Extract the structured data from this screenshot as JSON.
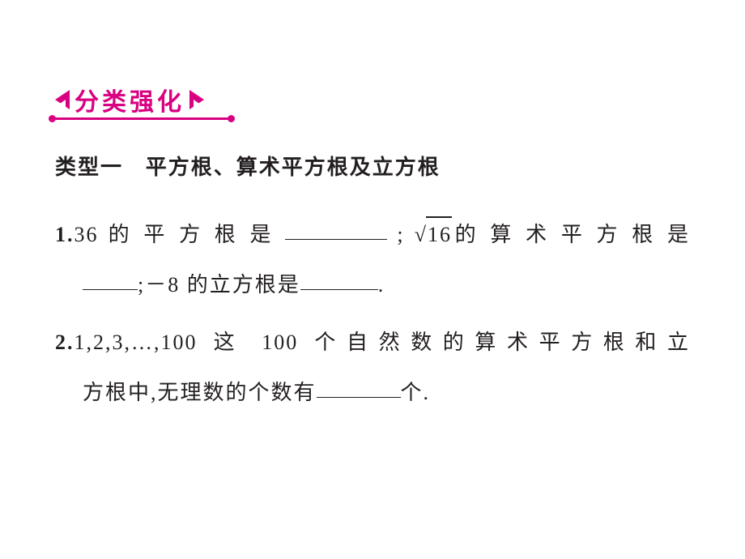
{
  "header": {
    "label": "分类强化",
    "color": "#d90081"
  },
  "typeHeading": {
    "prefix": "类型一",
    "title": "平方根、算术平方根及立方根"
  },
  "q1": {
    "num": "1.",
    "part1": "36 的 平 方 根 是",
    "blank1_width": 126,
    "part2": ";",
    "sqrt_val": "16",
    "part3": "的 算 术 平 方 根 是",
    "blank2_width": 68,
    "part4": ";－8 的立方根是",
    "blank3_width": 96,
    "part5": "."
  },
  "q2": {
    "num": "2.",
    "line1": "1,2,3,…,100 这 100 个自然数的算术平方根和立",
    "line2a": "方根中,无理数的个数有",
    "blank_width": 104,
    "line2b": "个."
  },
  "style": {
    "text_color": "#231f20",
    "bg_color": "#ffffff",
    "body_fontsize": 26,
    "heading_fontsize": 26,
    "pill_fontsize": 30,
    "line_height": 2.4
  }
}
